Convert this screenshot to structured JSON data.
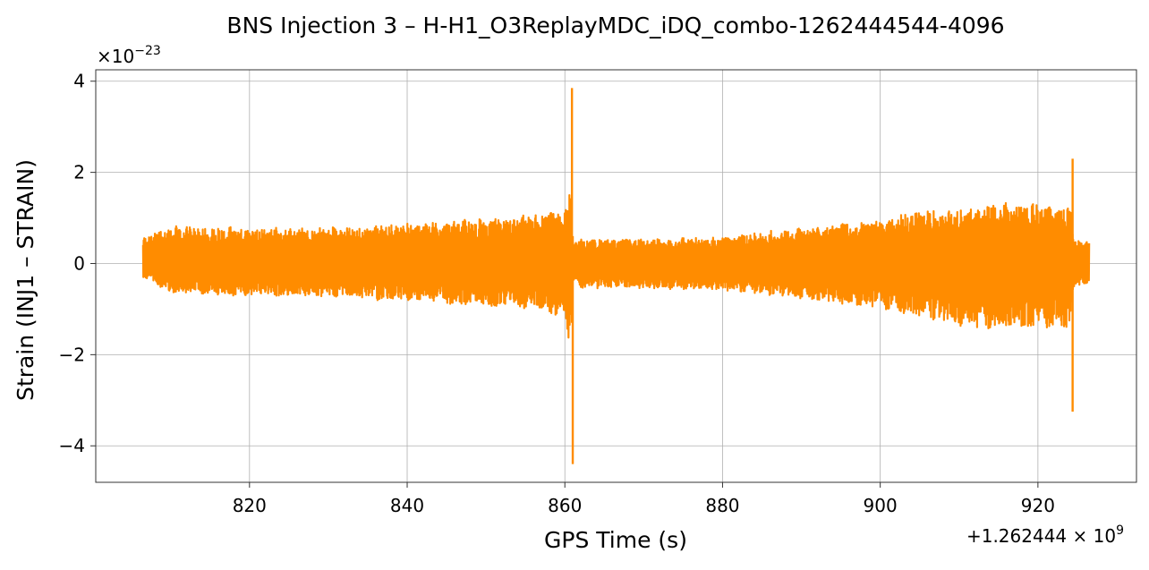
{
  "chart_data": {
    "type": "line",
    "title": "BNS Injection 3 – H-H1_O3ReplayMDC_iDQ_combo-1262444544-4096",
    "xlabel": "GPS Time (s)",
    "ylabel": "Strain (INJ1 – STRAIN)",
    "x_offset_base": "+1.262444",
    "x_offset_exp": "9",
    "y_multiplier_base": "×10",
    "y_multiplier_exp": "−23",
    "xlim": [
      800.5,
      932.5
    ],
    "ylim": [
      -4.8,
      4.25
    ],
    "xticks": [
      820,
      840,
      860,
      880,
      900,
      920
    ],
    "xtick_labels": [
      "820",
      "840",
      "860",
      "880",
      "900",
      "920"
    ],
    "yticks": [
      -4,
      -2,
      0,
      2,
      4
    ],
    "ytick_labels": [
      "−4",
      "−2",
      "0",
      "2",
      "4"
    ],
    "grid": true,
    "line_color": "#ff8c00",
    "series": [
      {
        "x_start": 806.5,
        "x_end": 926.5,
        "envelope_x": [
          806.5,
          810,
          820,
          830,
          840,
          850,
          855,
          858,
          860,
          860.6,
          861,
          862,
          870,
          880,
          890,
          900,
          905,
          910,
          915,
          920,
          923,
          924.2,
          924.6,
          926.5
        ],
        "envelope_pos": [
          0.6,
          0.85,
          0.8,
          0.8,
          0.9,
          1.0,
          1.1,
          1.15,
          1.3,
          1.7,
          0.5,
          0.55,
          0.55,
          0.6,
          0.8,
          1.0,
          1.2,
          1.2,
          1.35,
          1.35,
          1.2,
          1.4,
          0.5,
          0.5
        ],
        "envelope_neg": [
          -0.3,
          -0.65,
          -0.75,
          -0.75,
          -0.85,
          -0.95,
          -1.0,
          -1.1,
          -1.3,
          -1.8,
          -0.45,
          -0.55,
          -0.55,
          -0.6,
          -0.8,
          -1.0,
          -1.2,
          -1.4,
          -1.5,
          -1.5,
          -1.4,
          -1.6,
          -0.5,
          -0.5
        ],
        "spikes": [
          {
            "x": 860.9,
            "max": 3.85,
            "min": -1.3
          },
          {
            "x": 861.0,
            "max": 0.6,
            "min": -4.4
          },
          {
            "x": 924.4,
            "max": 2.3,
            "min": -3.25
          }
        ]
      }
    ]
  }
}
